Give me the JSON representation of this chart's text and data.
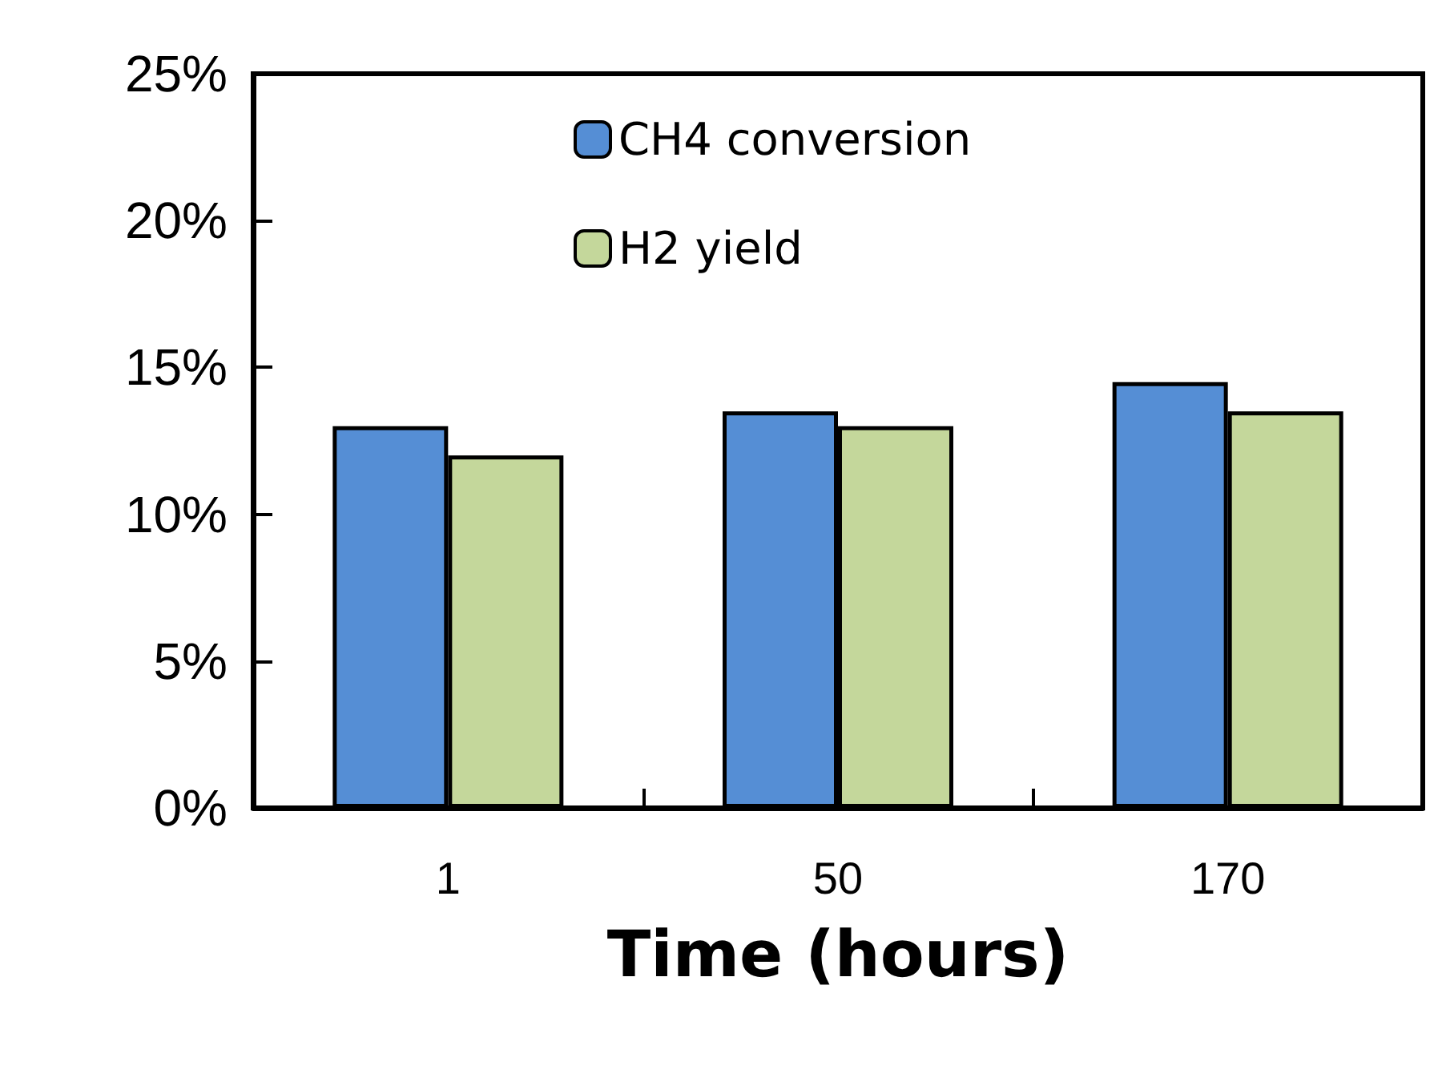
{
  "chart_data": {
    "type": "bar",
    "xlabel": "Time (hours)",
    "categories": [
      "1",
      "50",
      "170"
    ],
    "series": [
      {
        "name": "CH4 conversion",
        "color": "#558ed5",
        "values": [
          13,
          13.5,
          14.5
        ]
      },
      {
        "name": "H2 yield",
        "color": "#c4d79b",
        "values": [
          12,
          13,
          13.5
        ]
      }
    ],
    "ylim": [
      0,
      25
    ],
    "yticks": [
      {
        "value": 0,
        "label": "0%"
      },
      {
        "value": 5,
        "label": "5%"
      },
      {
        "value": 10,
        "label": "10%"
      },
      {
        "value": 15,
        "label": "15%"
      },
      {
        "value": 20,
        "label": "20%"
      },
      {
        "value": 25,
        "label": "25%"
      }
    ],
    "grid": false,
    "legend": "top"
  }
}
